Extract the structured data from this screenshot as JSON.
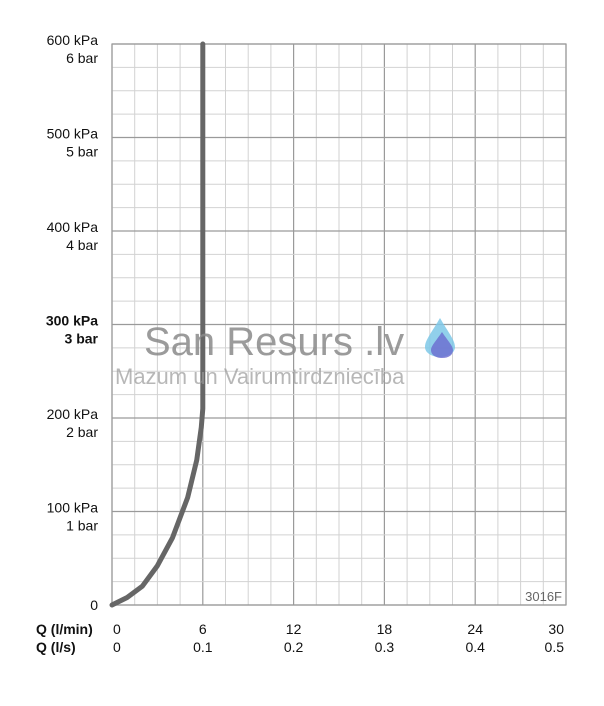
{
  "chart_data": {
    "type": "line",
    "title": "",
    "x_axes": [
      {
        "label": "Q (l/min)",
        "ticks": [
          "0",
          "6",
          "12",
          "18",
          "24",
          "30"
        ],
        "range": [
          0,
          30
        ]
      },
      {
        "label": "Q (l/s)",
        "ticks": [
          "0",
          "0.1",
          "0.2",
          "0.3",
          "0.4",
          "0.5"
        ],
        "range": [
          0,
          0.5
        ]
      }
    ],
    "y_axis": {
      "range": [
        0,
        600
      ],
      "ticks": [
        {
          "value": 0,
          "kpa": "0",
          "bar": "",
          "bold": false
        },
        {
          "value": 100,
          "kpa": "100 kPa",
          "bar": "1 bar",
          "bold": false
        },
        {
          "value": 200,
          "kpa": "200 kPa",
          "bar": "2 bar",
          "bold": false
        },
        {
          "value": 300,
          "kpa": "300 kPa",
          "bar": "3 bar",
          "bold": true
        },
        {
          "value": 400,
          "kpa": "400 kPa",
          "bar": "4 bar",
          "bold": false
        },
        {
          "value": 500,
          "kpa": "500 kPa",
          "bar": "5 bar",
          "bold": false
        },
        {
          "value": 600,
          "kpa": "600 kPa",
          "bar": "6 bar",
          "bold": false
        }
      ]
    },
    "grid": true,
    "series": [
      {
        "color": "#666666",
        "points": [
          [
            0,
            0
          ],
          [
            1,
            8
          ],
          [
            2,
            20
          ],
          [
            3,
            42
          ],
          [
            4,
            72
          ],
          [
            5,
            115
          ],
          [
            5.6,
            155
          ],
          [
            5.9,
            190
          ],
          [
            6.0,
            210
          ],
          [
            6.0,
            600
          ]
        ]
      }
    ],
    "annotation": "3016F"
  },
  "watermark": {
    "title": "San Resurs .lv",
    "subtitle": "Mazum un Vairumtirdzniecība",
    "drop_icon": "water-drop-icon",
    "drop_colors": [
      "#7ec8e8",
      "#6a6ad0"
    ]
  }
}
